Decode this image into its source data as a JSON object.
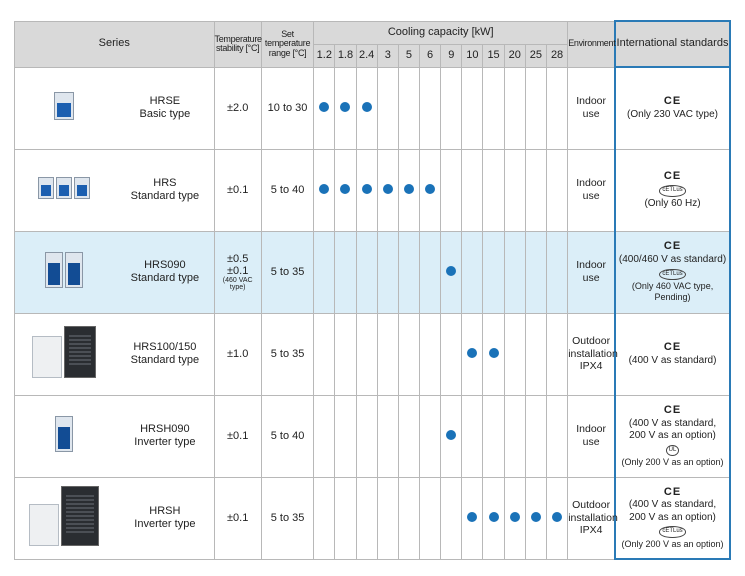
{
  "headers": {
    "series": "Series",
    "temp_stability": "Temperature stability [°C]",
    "set_temp_range": "Set temperature range [°C]",
    "cooling_capacity": "Cooling capacity [kW]",
    "environment": "Environment",
    "international_standards": "International standards"
  },
  "capacities": [
    "1.2",
    "1.8",
    "2.4",
    "3",
    "5",
    "6",
    "9",
    "10",
    "15",
    "20",
    "25",
    "28"
  ],
  "rows": [
    {
      "image": "HRSE chiller photo",
      "name": "HRSE",
      "type": "Basic type",
      "stability": [
        "±2.0"
      ],
      "range": "10 to 30",
      "dots": [
        true,
        true,
        true,
        false,
        false,
        false,
        false,
        false,
        false,
        false,
        false,
        false
      ],
      "environment": [
        "Indoor",
        "use"
      ],
      "standards": [
        {
          "t": "ce",
          "v": "CE"
        },
        {
          "t": "text",
          "v": "(Only 230 VAC type)"
        }
      ]
    },
    {
      "image": "HRS chiller photo",
      "name": "HRS",
      "type": "Standard type",
      "stability": [
        "±0.1"
      ],
      "range": "5 to 40",
      "dots": [
        true,
        true,
        true,
        true,
        true,
        true,
        false,
        false,
        false,
        false,
        false,
        false
      ],
      "environment": [
        "Indoor",
        "use"
      ],
      "standards": [
        {
          "t": "ce",
          "v": "CE"
        },
        {
          "t": "mark",
          "v": "cETLus"
        },
        {
          "t": "text",
          "v": "(Only 60 Hz)"
        }
      ]
    },
    {
      "image": "HRS090 chiller photo",
      "name": "HRS090",
      "type": "Standard type",
      "stability": [
        "±0.5",
        "±0.1",
        "(460 VAC type)"
      ],
      "range": "5 to 35",
      "dots": [
        false,
        false,
        false,
        false,
        false,
        false,
        true,
        false,
        false,
        false,
        false,
        false
      ],
      "environment": [
        "Indoor",
        "use"
      ],
      "standards": [
        {
          "t": "ce",
          "v": "CE"
        },
        {
          "t": "text",
          "v": "(400/460 V as standard)"
        },
        {
          "t": "mark",
          "v": "cETLus"
        },
        {
          "t": "small",
          "v": "(Only 460 VAC type, Pending)"
        }
      ],
      "highlight": true
    },
    {
      "image": "HRS100/150 chiller photo",
      "name": "HRS100/150",
      "type": "Standard type",
      "stability": [
        "±1.0"
      ],
      "range": "5 to 35",
      "dots": [
        false,
        false,
        false,
        false,
        false,
        false,
        false,
        true,
        true,
        false,
        false,
        false
      ],
      "environment": [
        "Outdoor",
        "installation",
        "IPX4"
      ],
      "standards": [
        {
          "t": "ce",
          "v": "CE"
        },
        {
          "t": "text",
          "v": "(400 V as standard)"
        }
      ]
    },
    {
      "image": "HRSH090 chiller photo",
      "name": "HRSH090",
      "type": "Inverter type",
      "stability": [
        "±0.1"
      ],
      "range": "5 to 40",
      "dots": [
        false,
        false,
        false,
        false,
        false,
        false,
        true,
        false,
        false,
        false,
        false,
        false
      ],
      "environment": [
        "Indoor",
        "use"
      ],
      "standards": [
        {
          "t": "ce",
          "v": "CE"
        },
        {
          "t": "text",
          "v": "(400 V as standard,"
        },
        {
          "t": "text",
          "v": "200 V as an option)"
        },
        {
          "t": "mark",
          "v": "UL"
        },
        {
          "t": "small",
          "v": "(Only 200 V as an option)"
        }
      ]
    },
    {
      "image": "HRSH chiller photo",
      "name": "HRSH",
      "type": "Inverter type",
      "stability": [
        "±0.1"
      ],
      "range": "5 to 35",
      "dots": [
        false,
        false,
        false,
        false,
        false,
        false,
        false,
        true,
        true,
        true,
        true,
        true
      ],
      "environment": [
        "Outdoor",
        "installation",
        "IPX4"
      ],
      "standards": [
        {
          "t": "ce",
          "v": "CE"
        },
        {
          "t": "text",
          "v": "(400 V as standard,"
        },
        {
          "t": "text",
          "v": "200 V as an option)"
        },
        {
          "t": "mark",
          "v": "cETLus"
        },
        {
          "t": "small",
          "v": "(Only 200 V as an option)"
        }
      ]
    }
  ]
}
